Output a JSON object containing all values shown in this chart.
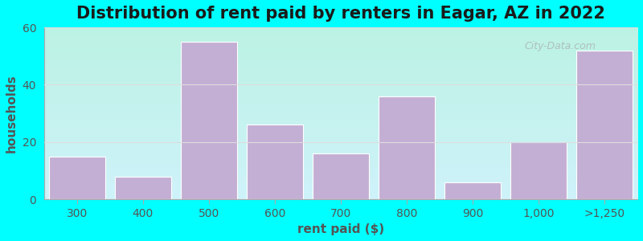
{
  "title": "Distribution of rent paid by renters in Eagar, AZ in 2022",
  "xlabel": "rent paid ($)",
  "ylabel": "households",
  "categories": [
    "300",
    "400",
    "500",
    "600",
    "700",
    "800",
    "900",
    "1,000",
    ">1,250"
  ],
  "values": [
    15,
    8,
    55,
    26,
    16,
    36,
    6,
    20,
    52
  ],
  "bar_color": "#c4afd4",
  "ylim": [
    0,
    60
  ],
  "yticks": [
    0,
    20,
    40,
    60
  ],
  "background_color": "#00ffff",
  "title_fontsize": 15,
  "axis_label_fontsize": 11,
  "tick_fontsize": 10,
  "title_color": "#1a1a1a",
  "label_color": "#555555",
  "watermark_text": "City-Data.com",
  "grid_color": "#dddddd"
}
